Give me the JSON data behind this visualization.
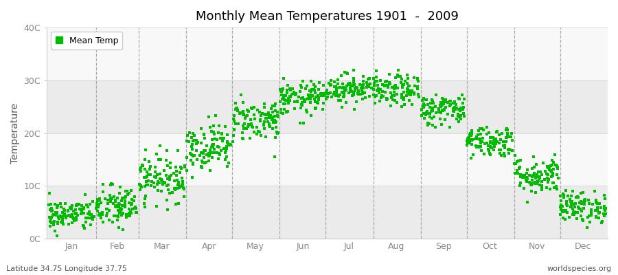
{
  "title": "Monthly Mean Temperatures 1901  -  2009",
  "ylabel": "Temperature",
  "xlabel_bottom_left": "Latitude 34.75 Longitude 37.75",
  "xlabel_bottom_right": "worldspecies.org",
  "legend_label": "Mean Temp",
  "dot_color": "#00BB00",
  "fig_bg_color": "#FFFFFF",
  "plot_bg_color": "#FFFFFF",
  "band_color_light": "#EBEBEB",
  "band_color_dark": "#F8F8F8",
  "ytick_labels": [
    "0C",
    "10C",
    "20C",
    "30C",
    "40C"
  ],
  "ytick_values": [
    0,
    10,
    20,
    30,
    40
  ],
  "months": [
    "Jan",
    "Feb",
    "Mar",
    "Apr",
    "May",
    "Jun",
    "Jul",
    "Aug",
    "Sep",
    "Oct",
    "Nov",
    "Dec"
  ],
  "month_means": [
    4.5,
    6.0,
    11.5,
    17.5,
    22.5,
    26.5,
    28.5,
    28.0,
    24.5,
    18.5,
    12.0,
    6.0
  ],
  "month_stds": [
    1.5,
    2.0,
    2.2,
    2.2,
    2.0,
    1.6,
    1.4,
    1.5,
    1.5,
    1.5,
    1.8,
    1.5
  ],
  "n_years": 109,
  "ylim": [
    0,
    40
  ],
  "dashed_line_color": "#AAAAAA",
  "spine_color": "#CCCCCC",
  "tick_color": "#888888"
}
